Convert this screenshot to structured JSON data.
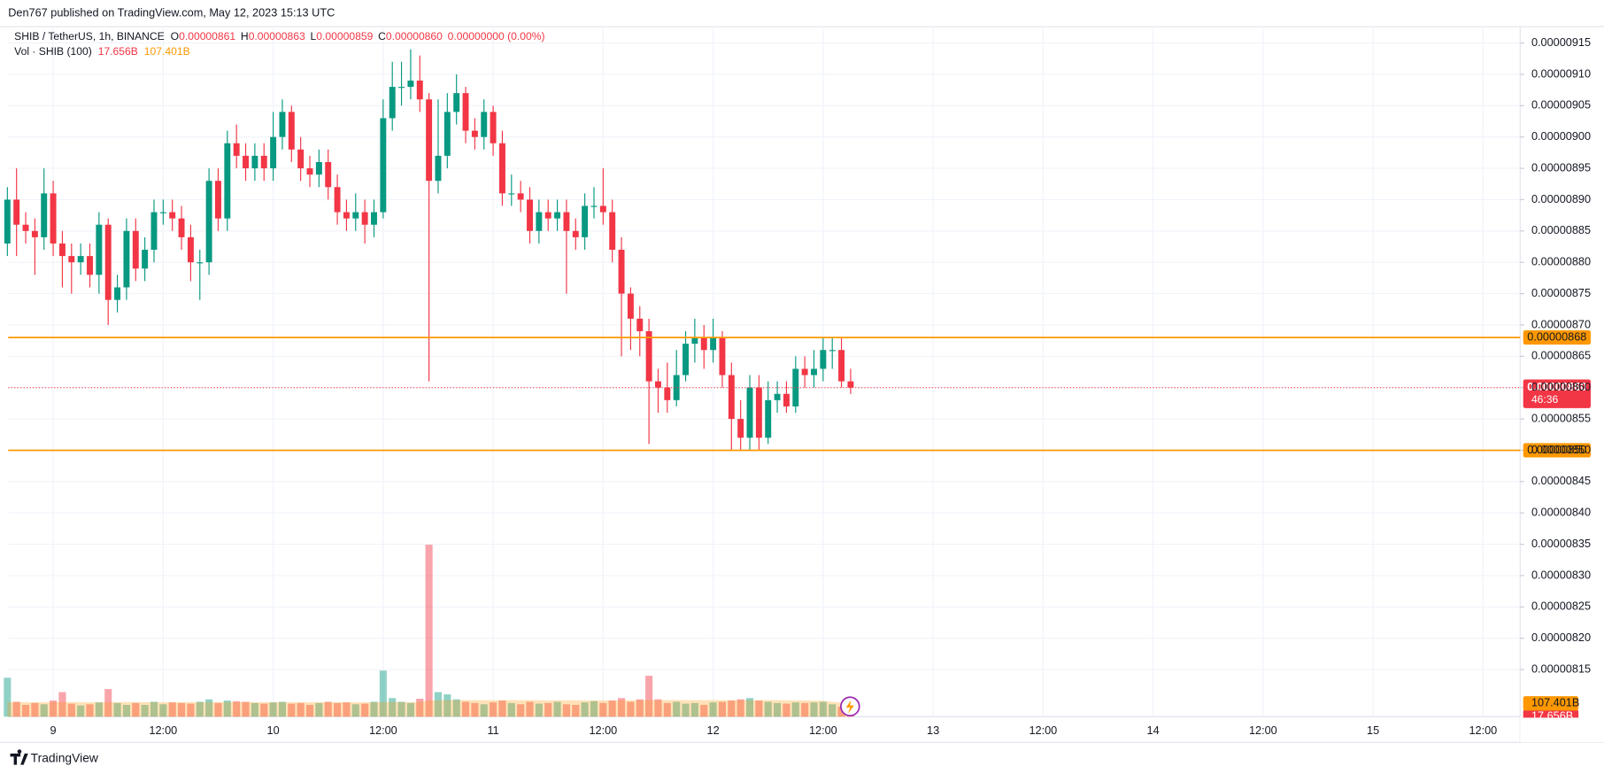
{
  "header": {
    "published": "Den767 published on TradingView.com, May 12, 2023 15:13 UTC"
  },
  "chart_data": {
    "type": "candlestick",
    "legend": {
      "symbol": "SHIB / TetherUS, 1h, BINANCE",
      "fields": [
        {
          "key": "O",
          "value": "0.00000861"
        },
        {
          "key": "H",
          "value": "0.00000863"
        },
        {
          "key": "L",
          "value": "0.00000859"
        },
        {
          "key": "C",
          "value": "0.00000860"
        }
      ],
      "change": "0.00000000 (0.00%)"
    },
    "categories": [
      null,
      null,
      null,
      null,
      null,
      "9",
      null,
      null,
      null,
      null,
      null,
      null,
      null,
      null,
      null,
      null,
      null,
      "12:00",
      null,
      null,
      null,
      null,
      null,
      null,
      null,
      null,
      null,
      null,
      null,
      "10",
      null,
      null,
      null,
      null,
      null,
      null,
      null,
      null,
      null,
      null,
      null,
      "12:00",
      null,
      null,
      null,
      null,
      null,
      null,
      null,
      null,
      null,
      null,
      null,
      "11",
      null,
      null,
      null,
      null,
      null,
      null,
      null,
      null,
      null,
      null,
      null,
      "12:00",
      null,
      null,
      null,
      null,
      null,
      null,
      null,
      null,
      null,
      null,
      null,
      "12",
      null,
      null,
      null,
      null,
      null,
      null,
      null,
      null,
      null,
      null,
      null,
      "12:00",
      null,
      null,
      null
    ],
    "future_categories": [
      null,
      null,
      null,
      null,
      null,
      null,
      null,
      null,
      "13",
      null,
      null,
      null,
      null,
      null,
      null,
      null,
      null,
      null,
      null,
      null,
      "12:00",
      null,
      null,
      null,
      null,
      null,
      null,
      null,
      null,
      null,
      null,
      null,
      "14",
      null,
      null,
      null,
      null,
      null,
      null,
      null,
      null,
      null,
      null,
      null,
      "12:00",
      null,
      null,
      null,
      null,
      null,
      null,
      null,
      null,
      null,
      null,
      null,
      "15",
      null,
      null,
      null,
      null,
      null,
      null,
      null,
      null,
      null,
      null,
      null,
      "12:00",
      null,
      null,
      null,
      null
    ],
    "open": [
      8.83e-06,
      8.9e-06,
      8.86e-06,
      8.85e-06,
      8.84e-06,
      8.91e-06,
      8.83e-06,
      8.81e-06,
      8.8e-06,
      8.81e-06,
      8.78e-06,
      8.86e-06,
      8.74e-06,
      8.76e-06,
      8.85e-06,
      8.79e-06,
      8.82e-06,
      8.88e-06,
      8.88e-06,
      8.87e-06,
      8.84e-06,
      8.8e-06,
      8.8e-06,
      8.93e-06,
      8.87e-06,
      8.99e-06,
      8.97e-06,
      8.95e-06,
      8.97e-06,
      8.95e-06,
      9e-06,
      9.04e-06,
      8.98e-06,
      8.95e-06,
      8.94e-06,
      8.96e-06,
      8.92e-06,
      8.88e-06,
      8.87e-06,
      8.88e-06,
      8.86e-06,
      8.88e-06,
      9.03e-06,
      9.08e-06,
      9.08e-06,
      9.09e-06,
      9.06e-06,
      8.93e-06,
      8.97e-06,
      9.04e-06,
      9.07e-06,
      9.01e-06,
      9e-06,
      9.04e-06,
      8.99e-06,
      8.91e-06,
      8.91e-06,
      8.9e-06,
      8.85e-06,
      8.88e-06,
      8.87e-06,
      8.88e-06,
      8.85e-06,
      8.84e-06,
      8.89e-06,
      8.89e-06,
      8.88e-06,
      8.82e-06,
      8.75e-06,
      8.71e-06,
      8.69e-06,
      8.61e-06,
      8.6e-06,
      8.58e-06,
      8.62e-06,
      8.67e-06,
      8.68e-06,
      8.66e-06,
      8.68e-06,
      8.62e-06,
      8.55e-06,
      8.52e-06,
      8.6e-06,
      8.52e-06,
      8.58e-06,
      8.59e-06,
      8.57e-06,
      8.63e-06,
      8.62e-06,
      8.63e-06,
      8.66e-06,
      8.66e-06,
      8.61e-06
    ],
    "high": [
      8.92e-06,
      8.95e-06,
      8.88e-06,
      8.87e-06,
      8.95e-06,
      8.93e-06,
      8.85e-06,
      8.83e-06,
      8.83e-06,
      8.83e-06,
      8.88e-06,
      8.87e-06,
      8.78e-06,
      8.87e-06,
      8.87e-06,
      8.84e-06,
      8.9e-06,
      8.9e-06,
      8.9e-06,
      8.89e-06,
      8.86e-06,
      8.82e-06,
      8.95e-06,
      8.95e-06,
      9.01e-06,
      9.02e-06,
      8.99e-06,
      8.99e-06,
      8.99e-06,
      9.04e-06,
      9.06e-06,
      9.05e-06,
      9e-06,
      8.97e-06,
      8.98e-06,
      8.98e-06,
      8.94e-06,
      8.9e-06,
      8.91e-06,
      8.9e-06,
      8.9e-06,
      9.06e-06,
      9.12e-06,
      9.12e-06,
      9.14e-06,
      9.13e-06,
      9.07e-06,
      9.06e-06,
      9.07e-06,
      9.1e-06,
      9.08e-06,
      9.03e-06,
      9.06e-06,
      9.05e-06,
      9.01e-06,
      8.94e-06,
      8.93e-06,
      8.92e-06,
      8.9e-06,
      8.9e-06,
      8.9e-06,
      8.9e-06,
      8.87e-06,
      8.91e-06,
      8.92e-06,
      8.95e-06,
      8.9e-06,
      8.84e-06,
      8.76e-06,
      8.73e-06,
      8.71e-06,
      8.63e-06,
      8.64e-06,
      8.66e-06,
      8.69e-06,
      8.71e-06,
      8.7e-06,
      8.71e-06,
      8.69e-06,
      8.64e-06,
      8.58e-06,
      8.62e-06,
      8.62e-06,
      8.61e-06,
      8.61e-06,
      8.61e-06,
      8.65e-06,
      8.65e-06,
      8.66e-06,
      8.68e-06,
      8.68e-06,
      8.68e-06,
      8.63e-06
    ],
    "low": [
      8.81e-06,
      8.81e-06,
      8.83e-06,
      8.78e-06,
      8.82e-06,
      8.81e-06,
      8.76e-06,
      8.75e-06,
      8.78e-06,
      8.76e-06,
      8.75e-06,
      8.7e-06,
      8.72e-06,
      8.74e-06,
      8.77e-06,
      8.77e-06,
      8.8e-06,
      8.86e-06,
      8.85e-06,
      8.82e-06,
      8.77e-06,
      8.74e-06,
      8.78e-06,
      8.85e-06,
      8.85e-06,
      8.95e-06,
      8.93e-06,
      8.93e-06,
      8.93e-06,
      8.93e-06,
      8.98e-06,
      8.96e-06,
      8.93e-06,
      8.92e-06,
      8.92e-06,
      8.9e-06,
      8.86e-06,
      8.85e-06,
      8.85e-06,
      8.83e-06,
      8.84e-06,
      8.87e-06,
      9.01e-06,
      9.05e-06,
      9.06e-06,
      9.04e-06,
      8.61e-06,
      8.91e-06,
      8.95e-06,
      9.02e-06,
      8.99e-06,
      8.98e-06,
      8.98e-06,
      8.97e-06,
      8.89e-06,
      8.89e-06,
      8.88e-06,
      8.83e-06,
      8.83e-06,
      8.85e-06,
      8.85e-06,
      8.75e-06,
      8.82e-06,
      8.82e-06,
      8.87e-06,
      8.86e-06,
      8.8e-06,
      8.65e-06,
      8.66e-06,
      8.65e-06,
      8.51e-06,
      8.56e-06,
      8.56e-06,
      8.57e-06,
      8.61e-06,
      8.64e-06,
      8.63e-06,
      8.64e-06,
      8.6e-06,
      8.5e-06,
      8.5e-06,
      8.5e-06,
      8.5e-06,
      8.51e-06,
      8.56e-06,
      8.56e-06,
      8.56e-06,
      8.6e-06,
      8.6e-06,
      8.61e-06,
      8.63e-06,
      8.6e-06,
      8.59e-06
    ],
    "close": [
      8.9e-06,
      8.86e-06,
      8.85e-06,
      8.84e-06,
      8.91e-06,
      8.83e-06,
      8.81e-06,
      8.8e-06,
      8.81e-06,
      8.78e-06,
      8.86e-06,
      8.74e-06,
      8.76e-06,
      8.85e-06,
      8.79e-06,
      8.82e-06,
      8.88e-06,
      8.88e-06,
      8.87e-06,
      8.84e-06,
      8.8e-06,
      8.8e-06,
      8.93e-06,
      8.87e-06,
      8.99e-06,
      8.97e-06,
      8.95e-06,
      8.97e-06,
      8.95e-06,
      9e-06,
      9.04e-06,
      8.98e-06,
      8.95e-06,
      8.94e-06,
      8.96e-06,
      8.92e-06,
      8.88e-06,
      8.87e-06,
      8.88e-06,
      8.86e-06,
      8.88e-06,
      9.03e-06,
      9.08e-06,
      9.08e-06,
      9.09e-06,
      9.06e-06,
      8.93e-06,
      8.97e-06,
      9.04e-06,
      9.07e-06,
      9.01e-06,
      9e-06,
      9.04e-06,
      8.99e-06,
      8.91e-06,
      8.91e-06,
      8.9e-06,
      8.85e-06,
      8.88e-06,
      8.87e-06,
      8.88e-06,
      8.85e-06,
      8.84e-06,
      8.89e-06,
      8.89e-06,
      8.88e-06,
      8.82e-06,
      8.75e-06,
      8.71e-06,
      8.69e-06,
      8.61e-06,
      8.6e-06,
      8.58e-06,
      8.62e-06,
      8.67e-06,
      8.68e-06,
      8.66e-06,
      8.68e-06,
      8.62e-06,
      8.55e-06,
      8.52e-06,
      8.6e-06,
      8.52e-06,
      8.58e-06,
      8.59e-06,
      8.57e-06,
      8.63e-06,
      8.62e-06,
      8.63e-06,
      8.66e-06,
      8.66e-06,
      8.61e-06,
      8.6e-06
    ],
    "up_color": "#089981",
    "down_color": "#f23645",
    "ylim": [
      8.07484e-06,
      9.21863e-06
    ],
    "yticks": [
      {
        "value": 9.15e-06,
        "label": "0.00000915"
      },
      {
        "value": 9.1e-06,
        "label": "0.00000910"
      },
      {
        "value": 9.05e-06,
        "label": "0.00000905"
      },
      {
        "value": 9e-06,
        "label": "0.00000900"
      },
      {
        "value": 8.95e-06,
        "label": "0.00000895"
      },
      {
        "value": 8.9e-06,
        "label": "0.00000890"
      },
      {
        "value": 8.85e-06,
        "label": "0.00000885"
      },
      {
        "value": 8.8e-06,
        "label": "0.00000880"
      },
      {
        "value": 8.75e-06,
        "label": "0.00000875"
      },
      {
        "value": 8.7e-06,
        "label": "0.00000870"
      },
      {
        "value": 8.65e-06,
        "label": "0.00000865"
      },
      {
        "value": 8.6e-06,
        "label": "0.00000860"
      },
      {
        "value": 8.55e-06,
        "label": "0.00000855"
      },
      {
        "value": 8.5e-06,
        "label": "0.00000850"
      },
      {
        "value": 8.45e-06,
        "label": "0.00000845"
      },
      {
        "value": 8.4e-06,
        "label": "0.00000840"
      },
      {
        "value": 8.35e-06,
        "label": "0.00000835"
      },
      {
        "value": 8.3e-06,
        "label": "0.00000830"
      },
      {
        "value": 8.25e-06,
        "label": "0.00000825"
      },
      {
        "value": 8.2e-06,
        "label": "0.00000820"
      },
      {
        "value": 8.15e-06,
        "label": "0.00000815"
      }
    ],
    "grid": true,
    "levels": [
      {
        "value": 8.68e-06,
        "label": "0.00000868"
      },
      {
        "value": 8.5e-06,
        "label": "0.00000850"
      }
    ],
    "level_color": "#ff9800",
    "last_price": {
      "value": 8.6e-06,
      "label": "0.00000860",
      "countdown": "46:36"
    },
    "volume": {
      "title": "Vol · SHIB (100)",
      "values": [
        314,
        120,
        95,
        110,
        100,
        130,
        198,
        105,
        90,
        100,
        115,
        223,
        110,
        95,
        110,
        95,
        120,
        100,
        115,
        110,
        105,
        120,
        140,
        110,
        130,
        125,
        120,
        110,
        105,
        115,
        120,
        105,
        110,
        95,
        110,
        120,
        110,
        115,
        100,
        105,
        120,
        372,
        150,
        120,
        110,
        145,
        1388,
        198,
        180,
        140,
        120,
        110,
        100,
        115,
        130,
        110,
        100,
        120,
        105,
        110,
        120,
        100,
        95,
        115,
        125,
        110,
        130,
        150,
        120,
        140,
        330,
        140,
        110,
        120,
        105,
        110,
        95,
        115,
        120,
        130,
        140,
        150,
        130,
        120,
        110,
        105,
        115,
        110,
        115,
        120,
        100,
        80,
        17.656
      ],
      "ma": [
        118,
        118,
        117,
        117,
        117,
        118,
        118,
        118,
        117,
        117,
        117,
        118,
        118,
        118,
        118,
        117,
        117,
        117,
        117,
        117,
        117,
        117,
        118,
        118,
        118,
        118,
        118,
        118,
        117,
        117,
        117,
        117,
        117,
        117,
        117,
        117,
        117,
        117,
        116,
        116,
        116,
        118,
        118,
        118,
        118,
        119,
        131,
        132,
        133,
        133,
        133,
        133,
        133,
        133,
        133,
        133,
        133,
        133,
        132,
        132,
        132,
        132,
        132,
        131,
        131,
        131,
        131,
        132,
        132,
        132,
        134,
        134,
        134,
        134,
        134,
        133,
        133,
        133,
        133,
        133,
        133,
        133,
        133,
        133,
        133,
        132,
        131,
        131,
        130,
        129,
        120,
        113,
        107.401
      ],
      "last_label": "17.656B",
      "ma_label": "107.401B",
      "ma_color": "#ff9800"
    }
  },
  "footer": {
    "brand": "TradingView"
  }
}
